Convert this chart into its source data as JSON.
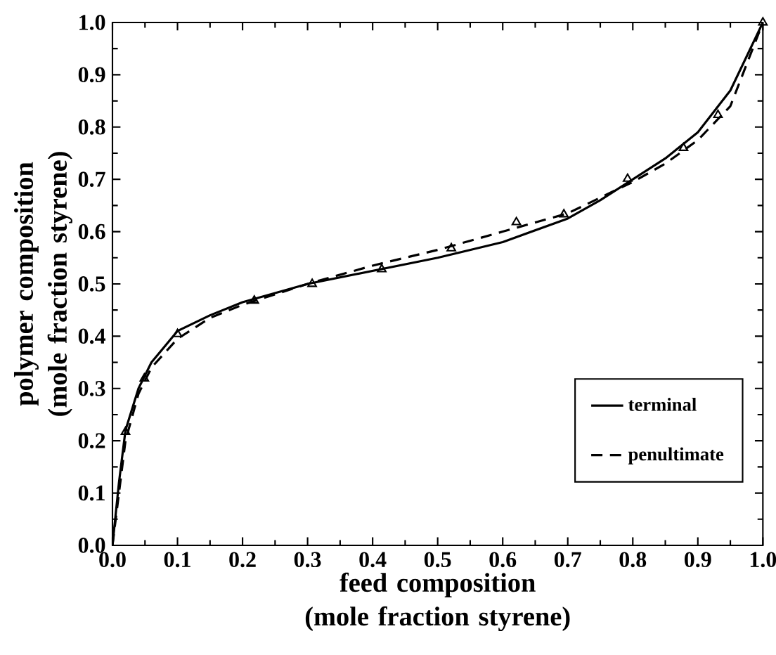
{
  "chart_data": {
    "type": "line",
    "xlabel": "feed composition (mole fraction styrene)",
    "ylabel": "polymer composition (mole fraction styrene)",
    "xlim": [
      0,
      1
    ],
    "ylim": [
      0,
      1
    ],
    "xticks": [
      {
        "value": 0,
        "label": "0.0"
      },
      0.1,
      0.2,
      0.3,
      0.4,
      0.5,
      0.6,
      0.7,
      0.8,
      0.9,
      {
        "value": 1,
        "label": "1.0"
      }
    ],
    "yticks": [
      {
        "value": 0,
        "label": "0.0"
      },
      0.1,
      0.2,
      0.3,
      0.4,
      0.5,
      0.6,
      0.7,
      0.8,
      0.9,
      {
        "value": 1,
        "label": "1.0"
      }
    ],
    "legend": "bottom right",
    "grid": false,
    "series": [
      {
        "name": "terminal",
        "color": "#000000",
        "line_style": "solid",
        "marker": "none",
        "x": [
          0,
          0.01,
          0.02,
          0.04,
          0.06,
          0.1,
          0.15,
          0.2,
          0.3,
          0.4,
          0.5,
          0.6,
          0.7,
          0.75,
          0.8,
          0.85,
          0.9,
          0.95,
          1
        ],
        "values": [
          0,
          0.12,
          0.22,
          0.3,
          0.35,
          0.41,
          0.44,
          0.465,
          0.5,
          0.525,
          0.55,
          0.58,
          0.625,
          0.66,
          0.7,
          0.74,
          0.79,
          0.87,
          1
        ]
      },
      {
        "name": "penultimate",
        "color": "#000000",
        "line_style": "dashed",
        "marker": "none",
        "x": [
          0,
          0.01,
          0.02,
          0.04,
          0.06,
          0.1,
          0.15,
          0.2,
          0.3,
          0.4,
          0.5,
          0.6,
          0.7,
          0.8,
          0.85,
          0.9,
          0.95,
          1
        ],
        "values": [
          0,
          0.1,
          0.2,
          0.29,
          0.34,
          0.395,
          0.435,
          0.46,
          0.5,
          0.535,
          0.565,
          0.6,
          0.635,
          0.695,
          0.73,
          0.775,
          0.84,
          1
        ]
      },
      {
        "type": "scatter",
        "color": "#000000",
        "marker": "triangle",
        "x": [
          0.02,
          0.049,
          0.1,
          0.218,
          0.307,
          0.414,
          0.521,
          0.621,
          0.694,
          0.792,
          0.878,
          0.931,
          1.0
        ],
        "values": [
          0.217,
          0.319,
          0.404,
          0.468,
          0.5,
          0.528,
          0.568,
          0.618,
          0.633,
          0.701,
          0.76,
          0.823,
          1.0
        ]
      }
    ]
  }
}
